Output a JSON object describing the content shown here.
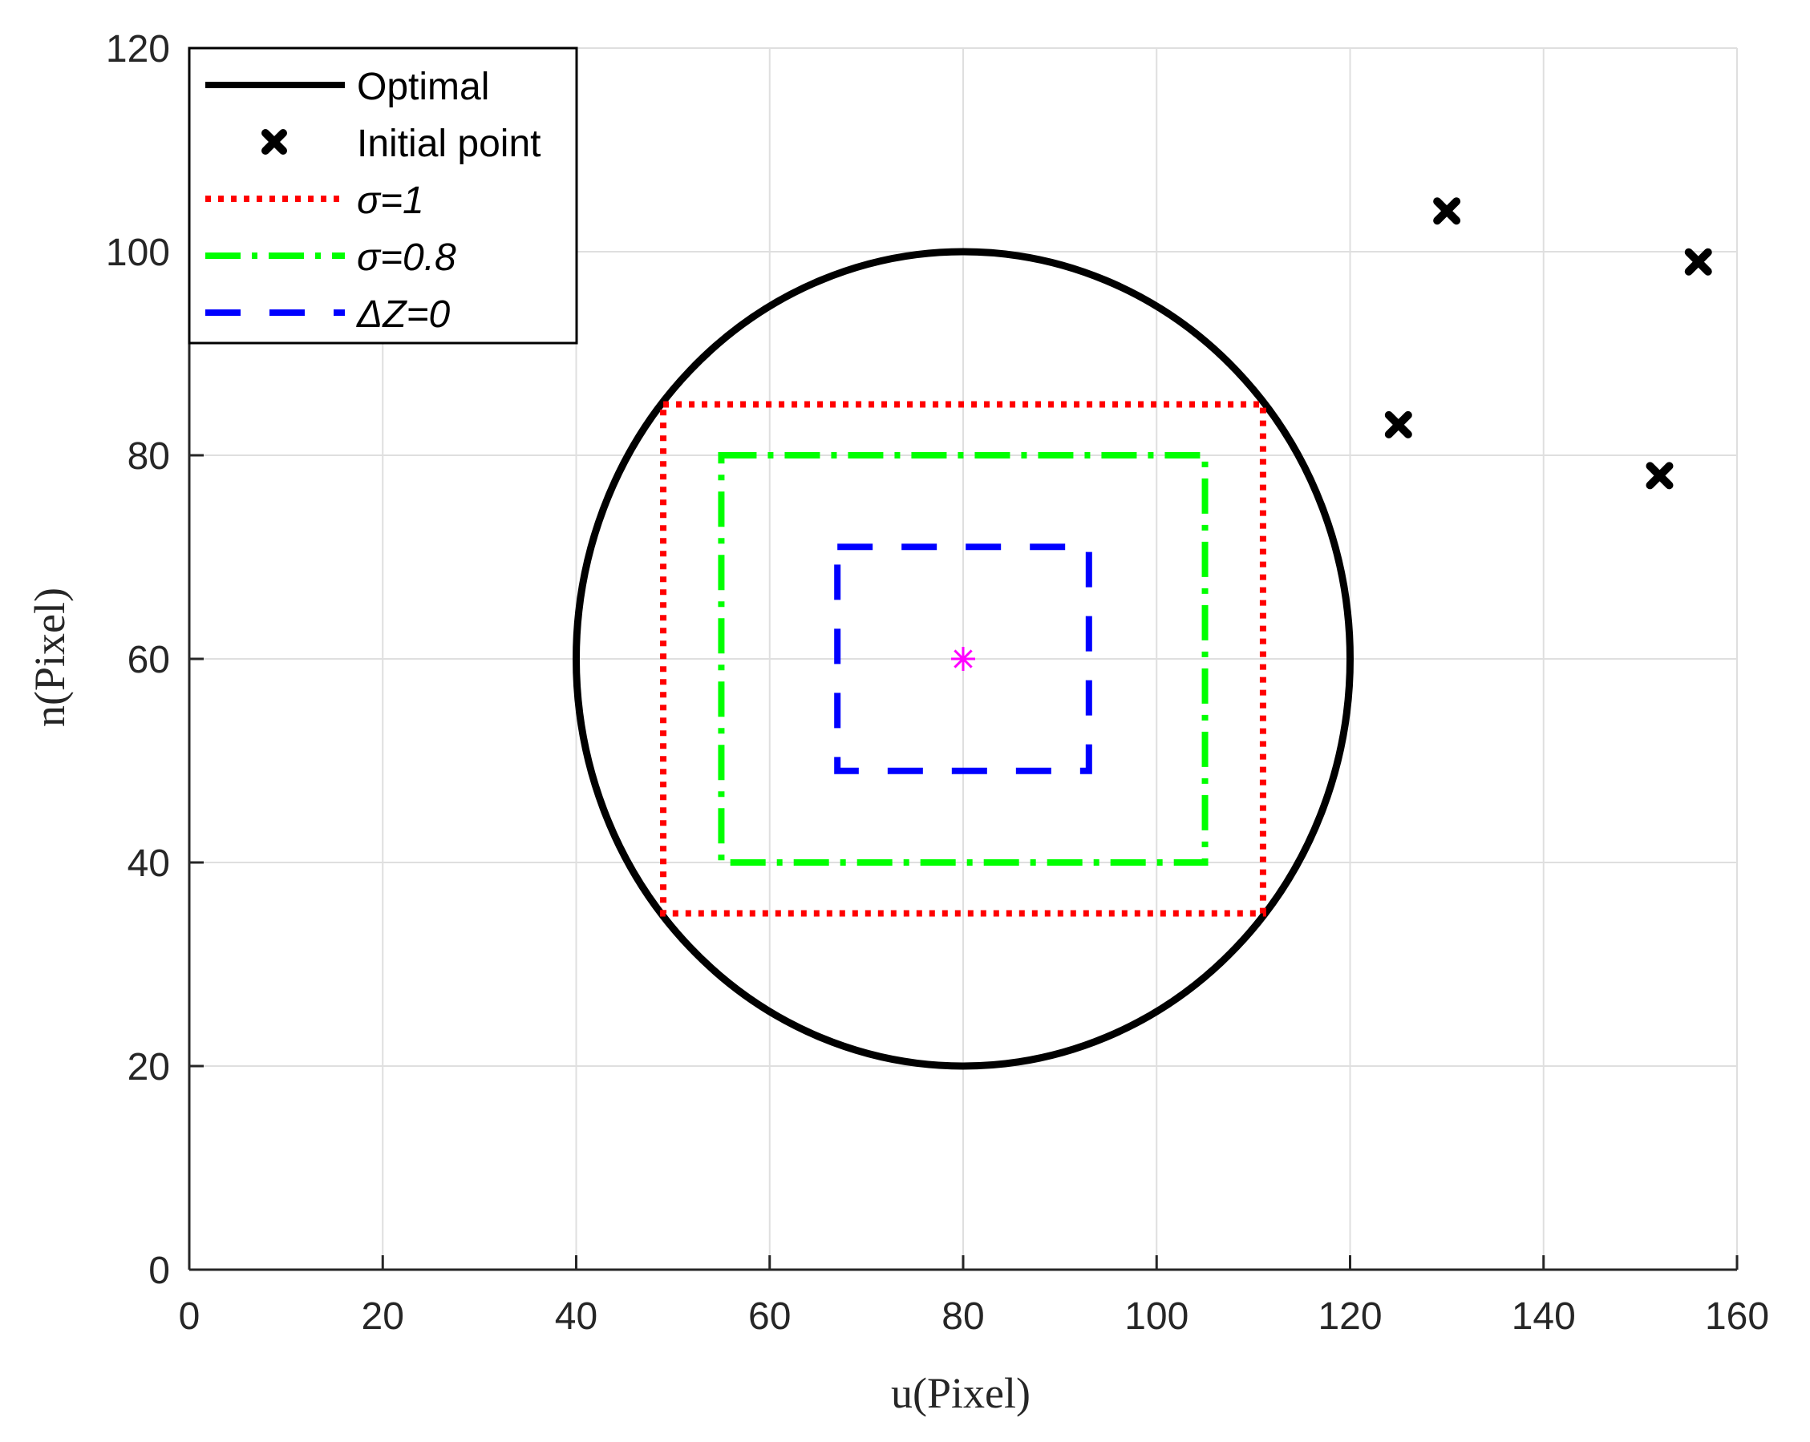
{
  "chart_data": {
    "type": "line",
    "xlabel": "u(Pixel)",
    "ylabel": "n(Pixel)",
    "xlim": [
      0,
      160
    ],
    "ylim": [
      0,
      120
    ],
    "xticks": [
      0,
      20,
      40,
      60,
      80,
      100,
      120,
      140,
      160
    ],
    "yticks": [
      0,
      20,
      40,
      60,
      80,
      100,
      120
    ],
    "xtick_labels": [
      "0",
      "20",
      "40",
      "60",
      "80",
      "100",
      "120",
      "140",
      "160"
    ],
    "ytick_labels": [
      "0",
      "20",
      "40",
      "60",
      "80",
      "100",
      "120"
    ],
    "grid": true,
    "legend_position": "top-left",
    "series": [
      {
        "name": "Optimal",
        "kind": "circle",
        "center": [
          80,
          60
        ],
        "radius_x": 40,
        "radius_y": 40,
        "color": "#000000",
        "style": "solid"
      },
      {
        "name": "Initial point",
        "kind": "markers",
        "marker": "x",
        "color": "#000000",
        "points": [
          [
            125,
            83
          ],
          [
            130,
            104
          ],
          [
            152,
            78
          ],
          [
            156,
            99
          ]
        ]
      },
      {
        "name": "σ=1",
        "kind": "rectangle",
        "u": [
          49,
          111
        ],
        "n": [
          35,
          85
        ],
        "color": "#ff0000",
        "style": "dotted"
      },
      {
        "name": "σ=0.8",
        "kind": "rectangle",
        "u": [
          55,
          105
        ],
        "n": [
          40,
          80
        ],
        "color": "#00ff00",
        "style": "dash-dot"
      },
      {
        "name": "ΔZ=0",
        "kind": "rectangle",
        "u": [
          67,
          93
        ],
        "n": [
          49,
          71
        ],
        "color": "#0000ff",
        "style": "dashed"
      }
    ],
    "center_marker": {
      "point": [
        80,
        60
      ],
      "marker": "asterisk",
      "color": "#ff00ff"
    }
  }
}
